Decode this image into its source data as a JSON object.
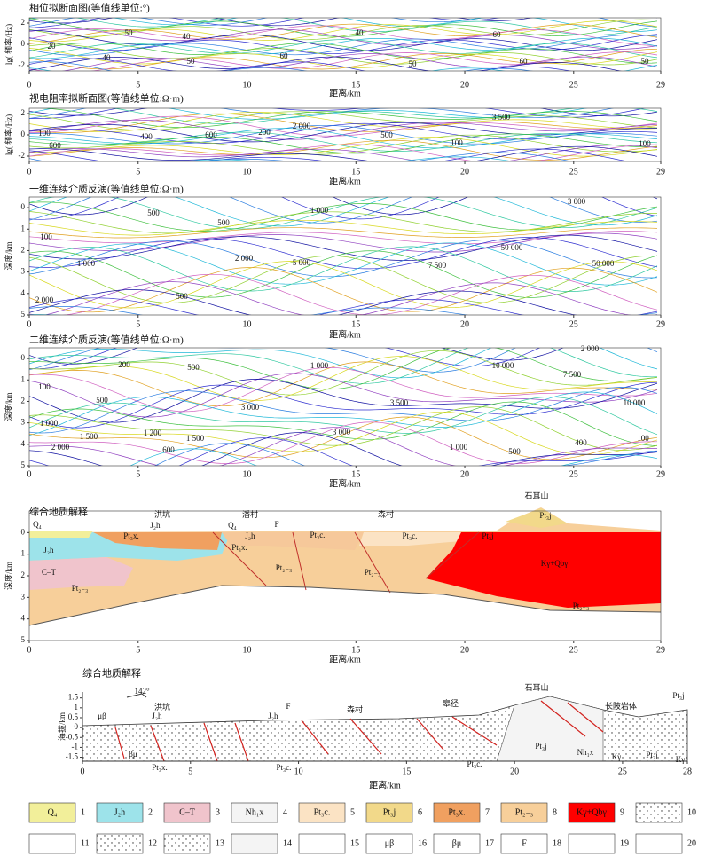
{
  "panels": [
    {
      "title": "相位拟断面图(等值线单位:°)",
      "ylabel": "lg( 频率/Hz)",
      "xlabel": "距离/km",
      "xlim": [
        0,
        29
      ],
      "xticks": [
        0,
        5,
        10,
        15,
        20,
        25,
        29
      ],
      "ylim": [
        -2.5,
        2.5
      ],
      "yticks": [
        2,
        0,
        -2
      ],
      "labels": [
        "50",
        "40",
        "20",
        "40",
        "40",
        "60",
        "60",
        "50",
        "60",
        "50",
        "50"
      ]
    },
    {
      "title": "视电阻率拟断面图(等值线单位:Ω·m)",
      "ylabel": "lg( 频率/Hz)",
      "xlabel": "距离/km",
      "xlim": [
        0,
        29
      ],
      "xticks": [
        0,
        5,
        10,
        15,
        20,
        25,
        29
      ],
      "ylim": [
        -2.5,
        2.5
      ],
      "yticks": [
        2,
        0,
        -2
      ],
      "labels": [
        "100",
        "600",
        "400",
        "600",
        "200",
        "2 000",
        "500",
        "3 500",
        "100",
        "100"
      ]
    },
    {
      "title": "一维连续介质反演(等值线单位:Ω·m)",
      "ylabel": "深度/km",
      "xlabel": "距离/km",
      "xlim": [
        0,
        29
      ],
      "xticks": [
        0,
        5,
        10,
        15,
        20,
        25,
        29
      ],
      "ylim": [
        -0.5,
        5
      ],
      "yinvert": true,
      "yticks": [
        0,
        1,
        2,
        3,
        4,
        5
      ],
      "labels": [
        "500",
        "100",
        "500",
        "1 000",
        "1 000",
        "2 000",
        "5 000",
        "7 500",
        "50 000",
        "50 000",
        "3 000",
        "2 000",
        "500"
      ]
    },
    {
      "title": "二维连续介质反演(等值线单位:Ω·m)",
      "ylabel": "深度/km",
      "xlabel": "距离/km",
      "xlim": [
        0,
        29
      ],
      "xticks": [
        0,
        5,
        10,
        15,
        20,
        25,
        29
      ],
      "ylim": [
        -0.5,
        5
      ],
      "yinvert": true,
      "yticks": [
        0,
        1,
        2,
        3,
        4,
        5
      ],
      "labels": [
        "200",
        "500",
        "100",
        "500",
        "1 000",
        "1 500",
        "1 200",
        "1 500",
        "600",
        "2 000",
        "1 000",
        "3 000",
        "3 000",
        "3 500",
        "10 000",
        "7 500",
        "10 000",
        "2 000",
        "1 000",
        "500",
        "400",
        "100"
      ]
    },
    {
      "title": "综合地质解释",
      "ylabel": "深度/km",
      "xlabel": "距离/km",
      "xlim": [
        0,
        29
      ],
      "xticks": [
        0,
        5,
        10,
        15,
        20,
        25,
        29
      ],
      "ylim": [
        -1,
        5
      ],
      "yinvert": true,
      "yticks": [
        0,
        1,
        2,
        3,
        4,
        5
      ],
      "labels": [
        "Q₄",
        "J₂h",
        "洪坑",
        "Pt₃x.",
        "潘村",
        "Q₄",
        "J₂h",
        "F",
        "Pt₃x.",
        "Pt₃c.",
        "森村",
        "Pt₃c.",
        "石耳山",
        "Pt₃j",
        "Pt₃j",
        "J₂h",
        "C–T",
        "Pt₂₋₃",
        "Pt₂₋₃",
        "Pt₂₋₃",
        "Kγ+Qbγ",
        "Pt₂₋₃"
      ]
    },
    {
      "title": "综合地质解释",
      "ylabel": "海拔/km",
      "xlabel": "距离/km",
      "xlim": [
        0,
        28
      ],
      "xticks": [
        0,
        5,
        10,
        15,
        20,
        25,
        28
      ],
      "ylim": [
        -1.7,
        1.8
      ],
      "yticks": [
        1.5,
        1,
        0.5,
        0,
        -0.5,
        -1,
        -1.5
      ],
      "labels": [
        "142°",
        "洪坑",
        "J₂h",
        "μβ",
        "βμ",
        "Pt₃x.",
        "J₂h",
        "F",
        "Pt₃c.",
        "森村",
        "皋径",
        "Pt₃c.",
        "石耳山",
        "长陂岩体",
        "Pt₃j",
        "Nh₁x",
        "Kγ",
        "Pt₃j",
        "Kγ",
        "Pt₃j"
      ]
    }
  ],
  "legend": [
    {
      "label": "Q₄",
      "number": 1
    },
    {
      "label": "J₂h",
      "number": 2
    },
    {
      "label": "C–T",
      "number": 3
    },
    {
      "label": "Nh₁x",
      "number": 4
    },
    {
      "label": "Pt₃c.",
      "number": 5
    },
    {
      "label": "Pt₃j",
      "number": 6
    },
    {
      "label": "Pt₃x.",
      "number": 7
    },
    {
      "label": "Pt₂₋₃",
      "number": 8
    },
    {
      "label": "Kγ+Qbγ",
      "number": 9
    },
    {
      "number": 10
    },
    {
      "number": 11
    },
    {
      "number": 12
    },
    {
      "number": 13
    },
    {
      "number": 14
    },
    {
      "number": 15
    },
    {
      "label": "μβ",
      "number": 16
    },
    {
      "label": "βμ",
      "number": 17
    },
    {
      "label": "F",
      "number": 18
    },
    {
      "number": 19
    },
    {
      "number": 20
    }
  ]
}
